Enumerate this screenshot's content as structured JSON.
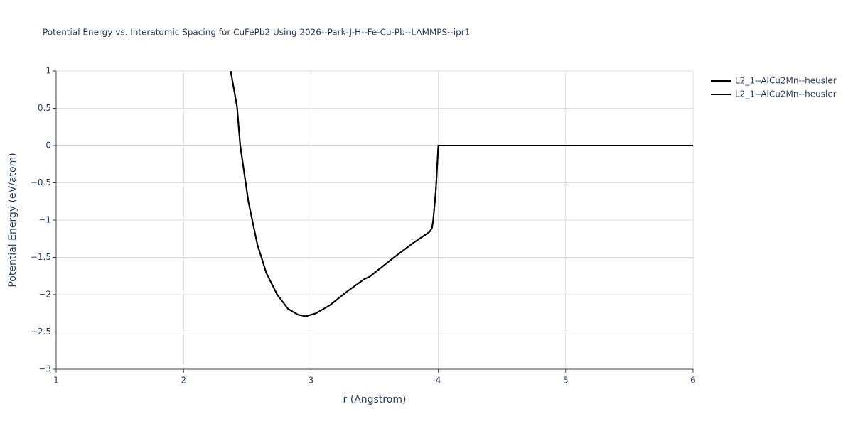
{
  "chart_data": {
    "type": "line",
    "title": "Potential Energy vs. Interatomic Spacing for CuFePb2 Using 2026--Park-J-H--Fe-Cu-Pb--LAMMPS--ipr1",
    "x_label": "r (Angstrom)",
    "y_label": "Potential Energy (eV/atom)",
    "xlim": [
      1,
      6
    ],
    "ylim": [
      -3,
      1
    ],
    "xticks": [
      1,
      2,
      3,
      4,
      5,
      6
    ],
    "yticks": [
      {
        "value": -3,
        "label": "−3"
      },
      {
        "value": -2.5,
        "label": "−2.5"
      },
      {
        "value": -2,
        "label": "−2"
      },
      {
        "value": -1.5,
        "label": "−1.5"
      },
      {
        "value": -1,
        "label": "−1"
      },
      {
        "value": -0.5,
        "label": "−0.5"
      },
      0,
      0.5,
      1
    ],
    "grid": true,
    "legend": "right",
    "series": [
      {
        "name": "L2_1--AlCu2Mn--heusler",
        "color": "#000000",
        "x": [
          2.37,
          2.42,
          2.445,
          2.51,
          2.58,
          2.65,
          2.735,
          2.82,
          2.9,
          2.96,
          3.04,
          3.15,
          3.29,
          3.42,
          3.46,
          3.66,
          3.8,
          3.93,
          3.95,
          3.96,
          3.98,
          4.0,
          5.0,
          6.0
        ],
        "values": [
          1.0,
          0.52,
          0,
          -0.76,
          -1.33,
          -1.71,
          -2.0,
          -2.19,
          -2.27,
          -2.29,
          -2.25,
          -2.14,
          -1.95,
          -1.79,
          -1.76,
          -1.49,
          -1.31,
          -1.16,
          -1.11,
          -1.0,
          -0.62,
          0,
          0,
          0
        ]
      },
      {
        "name": "L2_1--AlCu2Mn--heusler",
        "color": "#000000",
        "x": [
          2.37,
          2.42,
          2.445,
          2.51,
          2.58,
          2.65,
          2.735,
          2.82,
          2.9,
          2.96,
          3.04,
          3.15,
          3.29,
          3.42,
          3.46,
          3.66,
          3.8,
          3.93,
          3.95,
          3.96,
          3.98,
          4.0,
          5.0,
          6.0
        ],
        "values": [
          1.0,
          0.52,
          0,
          -0.76,
          -1.33,
          -1.71,
          -2.0,
          -2.19,
          -2.27,
          -2.29,
          -2.25,
          -2.14,
          -1.95,
          -1.79,
          -1.76,
          -1.49,
          -1.31,
          -1.16,
          -1.11,
          -1.0,
          -0.62,
          0,
          0,
          0
        ]
      }
    ]
  }
}
